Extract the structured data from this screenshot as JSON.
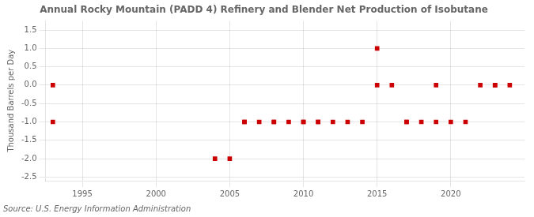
{
  "chart_data": {
    "type": "scatter",
    "title": "Annual Rocky Mountain (PADD 4) Refinery and Blender Net Production of Isobutane",
    "y_label": "Thousand Barrels per Day",
    "annotations": [
      "Source: U.S. Energy Information Administration"
    ],
    "x": [
      1993,
      1993,
      2004,
      2005,
      2006,
      2006,
      2007,
      2008,
      2008,
      2009,
      2010,
      2010,
      2011,
      2011,
      2012,
      2013,
      2014,
      2015,
      2015,
      2016,
      2017,
      2017,
      2018,
      2019,
      2019,
      2020,
      2021,
      2022,
      2023,
      2023,
      2024
    ],
    "values": [
      0,
      -1,
      -2,
      -2,
      -1,
      -1,
      -1,
      -1,
      -1,
      -1,
      -1,
      -1,
      -1,
      -1,
      -1,
      -1,
      -1,
      0,
      1,
      0,
      -1,
      -1,
      -1,
      0,
      -1,
      -1,
      -1,
      0,
      0,
      0,
      0
    ],
    "color": "#cc0000",
    "marker": "square",
    "xlim": [
      1992.5,
      2025
    ],
    "ylim": [
      -2.6,
      1.75
    ],
    "xticks": [
      1995,
      2000,
      2005,
      2010,
      2015,
      2020
    ],
    "yticks": [
      -2.5,
      {
        "value": -2.0,
        "label": "-2.0"
      },
      -1.5,
      {
        "value": -1,
        "label": "-1.0"
      },
      -0.5,
      {
        "value": 0,
        "label": "0.0"
      },
      0.5,
      {
        "value": 1,
        "label": "1.0"
      },
      1.5
    ],
    "grid": true
  }
}
